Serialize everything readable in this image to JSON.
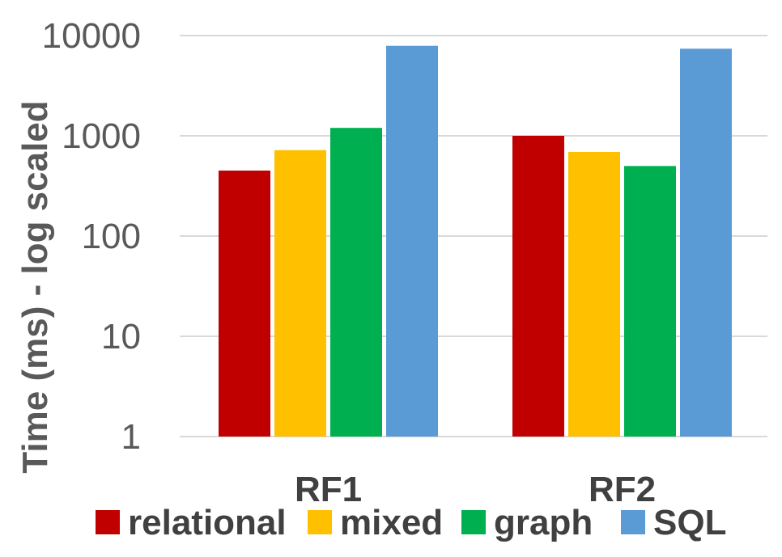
{
  "chart_data": {
    "type": "bar",
    "title": "",
    "xlabel": "",
    "ylabel": "Time (ms) - log scaled",
    "y_scale": "log",
    "ylim": [
      1,
      10000
    ],
    "y_ticks": [
      {
        "value": 1,
        "label": "1"
      },
      {
        "value": 10,
        "label": "10"
      },
      {
        "value": 100,
        "label": "100"
      },
      {
        "value": 1000,
        "label": "1000"
      },
      {
        "value": 10000,
        "label": "10000"
      }
    ],
    "grid": true,
    "legend_position": "bottom",
    "categories": [
      "RF1",
      "RF2"
    ],
    "series": [
      {
        "name": "relational",
        "color": "#c00000",
        "values": [
          450,
          1000
        ]
      },
      {
        "name": "mixed",
        "color": "#ffc000",
        "values": [
          720,
          690
        ]
      },
      {
        "name": "graph",
        "color": "#00b050",
        "values": [
          1200,
          500
        ]
      },
      {
        "name": "SQL",
        "color": "#5b9bd5",
        "values": [
          7900,
          7400
        ]
      }
    ]
  }
}
